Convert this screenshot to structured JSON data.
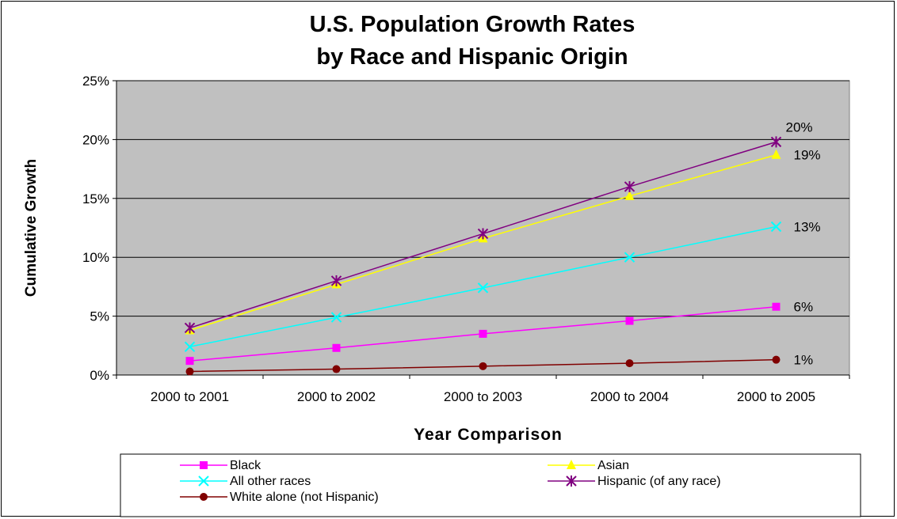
{
  "chart_data": {
    "type": "line",
    "title": [
      "U.S. Population Growth Rates",
      "by Race and Hispanic Origin"
    ],
    "xlabel": "Year Comparison",
    "ylabel": "Cumulative Growth",
    "categories": [
      "2000 to 2001",
      "2000 to 2002",
      "2000 to 2003",
      "2000 to 2004",
      "2000 to 2005"
    ],
    "ylim": [
      0,
      25
    ],
    "yticks": [
      "0%",
      "5%",
      "10%",
      "15%",
      "20%",
      "25%"
    ],
    "grid": true,
    "plot_background": "#c0c0c0",
    "series": [
      {
        "name": "Black",
        "color": "#ff00ff",
        "marker": "square",
        "values": [
          1.2,
          2.3,
          3.5,
          4.6,
          5.8
        ],
        "end_label": "6%"
      },
      {
        "name": "Asian",
        "color": "#ffff00",
        "marker": "triangle",
        "values": [
          3.8,
          7.7,
          11.6,
          15.2,
          18.7
        ],
        "end_label": "19%"
      },
      {
        "name": "All other races",
        "color": "#00ffff",
        "marker": "x",
        "values": [
          2.4,
          4.9,
          7.4,
          10.0,
          12.6
        ],
        "end_label": "13%"
      },
      {
        "name": "Hispanic (of any race)",
        "color": "#800080",
        "marker": "asterisk",
        "values": [
          4.0,
          8.0,
          12.0,
          16.0,
          19.8
        ],
        "end_label": "20%"
      },
      {
        "name": "White alone (not Hispanic)",
        "color": "#800000",
        "marker": "circle",
        "values": [
          0.3,
          0.5,
          0.75,
          1.0,
          1.3
        ],
        "end_label": "1%"
      }
    ],
    "legend": {
      "position": "bottom"
    }
  }
}
